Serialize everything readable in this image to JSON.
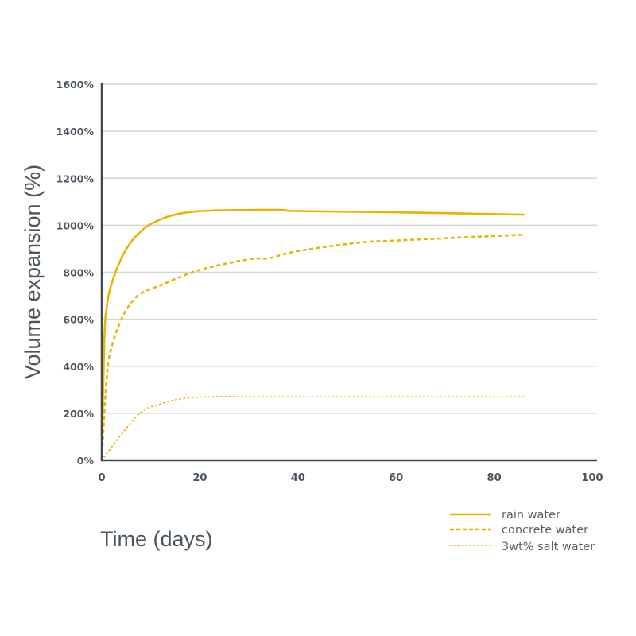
{
  "chart_data": {
    "type": "line",
    "title": "",
    "xlabel": "Time (days)",
    "ylabel": "Volume expansion (%)",
    "xlim": [
      0,
      100
    ],
    "ylim": [
      0,
      1600
    ],
    "x_ticks": [
      0,
      20,
      40,
      60,
      80,
      100
    ],
    "x_tick_labels": [
      "0",
      "20",
      "40",
      "60",
      "80",
      "100"
    ],
    "y_ticks": [
      0,
      200,
      400,
      600,
      800,
      1000,
      1200,
      1400,
      1600
    ],
    "y_tick_labels": [
      "0%",
      "200%",
      "400%",
      "600%",
      "800%",
      "1000%",
      "1200%",
      "1400%",
      "1600%"
    ],
    "grid": "horizontal",
    "legend_position": "bottom-right, below plot",
    "colors": {
      "series": "#e8b400",
      "axis": "#3d4a55",
      "grid": "#d4d4d4",
      "text": "#4a5560"
    },
    "series": [
      {
        "name": "rain water",
        "style": "solid",
        "x": [
          0,
          0.5,
          1,
          2,
          4,
          6,
          8,
          10,
          14,
          20,
          30,
          37,
          40,
          60,
          86
        ],
        "y": [
          0,
          500,
          650,
          750,
          860,
          930,
          975,
          1005,
          1040,
          1060,
          1065,
          1065,
          1060,
          1055,
          1045
        ]
      },
      {
        "name": "concrete water",
        "style": "dashed",
        "x": [
          0,
          1,
          2,
          4,
          6,
          8,
          12,
          20,
          30,
          34,
          40,
          52,
          60,
          86
        ],
        "y": [
          0,
          350,
          480,
          600,
          670,
          710,
          745,
          810,
          855,
          860,
          890,
          925,
          935,
          960
        ]
      },
      {
        "name": "3wt% salt water",
        "style": "dotted",
        "x": [
          0,
          4,
          8,
          12,
          16,
          22,
          40,
          86
        ],
        "y": [
          0,
          110,
          205,
          240,
          260,
          270,
          270,
          270
        ]
      }
    ]
  },
  "legend": {
    "items": [
      "rain water",
      "concrete water",
      "3wt% salt water"
    ]
  },
  "axes": {
    "xlabel": "Time (days)",
    "ylabel": "Volume expansion (%)"
  }
}
